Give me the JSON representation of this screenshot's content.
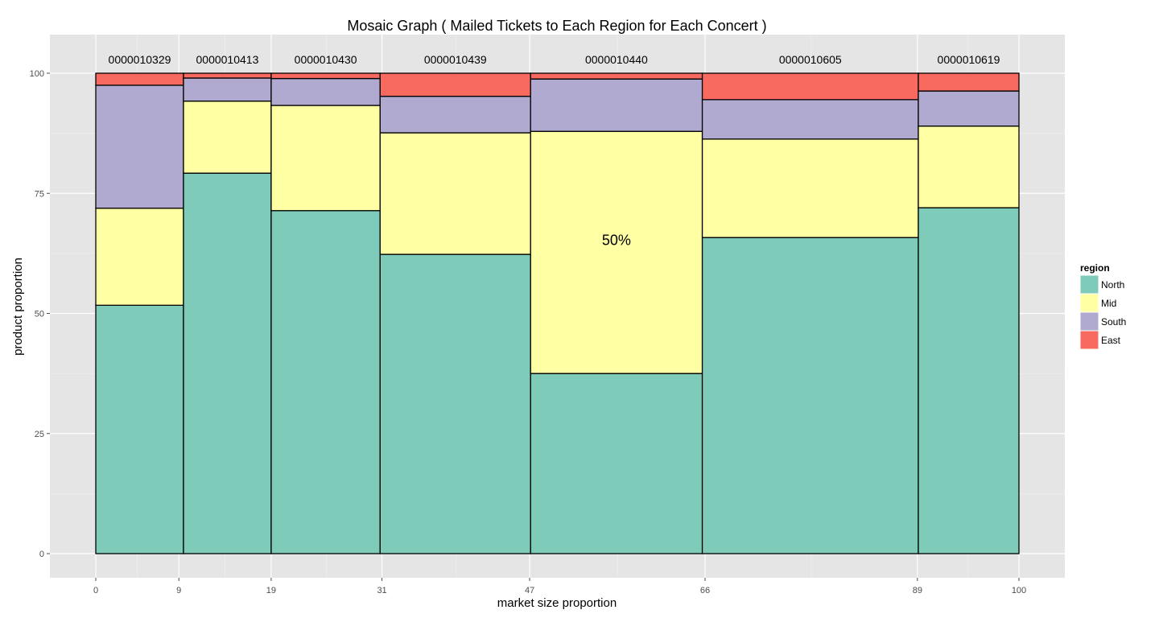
{
  "chart_data": {
    "type": "mosaic",
    "title": "Mosaic Graph ( Mailed Tickets to Each Region for Each Concert )",
    "xlabel": "market size proportion",
    "ylabel": "product proportion",
    "xlim": [
      0,
      100
    ],
    "ylim": [
      0,
      100
    ],
    "x_ticks": [
      "0",
      "9",
      "19",
      "31",
      "47",
      "66",
      "89",
      "100"
    ],
    "y_ticks": [
      "0",
      "25",
      "50",
      "75",
      "100"
    ],
    "grid": true,
    "legend": {
      "title": "region",
      "position": "right"
    },
    "categories": [
      "0000010329",
      "0000010413",
      "0000010430",
      "0000010439",
      "0000010440",
      "0000010605",
      "0000010619"
    ],
    "x_bounds": [
      [
        0,
        9.5
      ],
      [
        9.5,
        19
      ],
      [
        19,
        30.8
      ],
      [
        30.8,
        47.1
      ],
      [
        47.1,
        65.7
      ],
      [
        65.7,
        89.1
      ],
      [
        89.1,
        100
      ]
    ],
    "series": [
      {
        "name": "North",
        "color": "#7fcbb9",
        "values": [
          51.7,
          79.2,
          71.4,
          62.3,
          37.5,
          65.8,
          72.0
        ]
      },
      {
        "name": "Mid",
        "color": "#ffffa3",
        "values": [
          20.2,
          15.0,
          21.9,
          25.3,
          50.4,
          20.5,
          17.0
        ]
      },
      {
        "name": "South",
        "color": "#b1aad0",
        "values": [
          25.6,
          4.8,
          5.6,
          7.6,
          10.9,
          8.2,
          7.3
        ]
      },
      {
        "name": "East",
        "color": "#f8695f",
        "values": [
          2.5,
          1.0,
          1.1,
          4.8,
          1.2,
          5.5,
          3.7
        ]
      }
    ],
    "annotation": {
      "text": "50%",
      "category": "0000010440",
      "series": "Mid"
    }
  }
}
